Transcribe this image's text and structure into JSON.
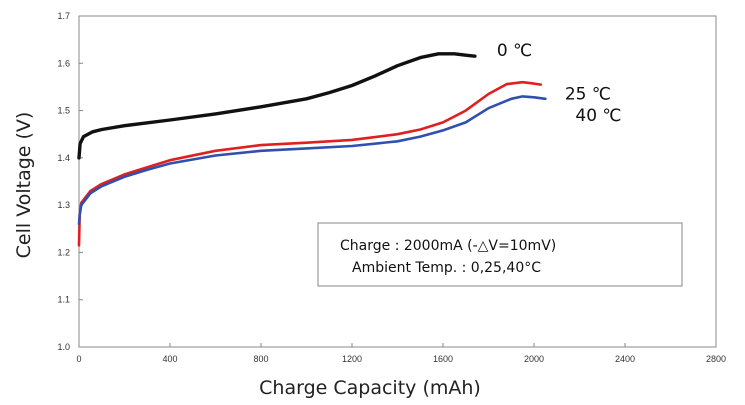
{
  "chart_data": {
    "type": "line",
    "title": "",
    "xlabel": "Charge Capacity (mAh)",
    "ylabel": "Cell Voltage (V)",
    "xlim": [
      0,
      2800
    ],
    "ylim": [
      1.0,
      1.7
    ],
    "xticks": [
      "0",
      "400",
      "800",
      "1200",
      "1600",
      "2000",
      "2400",
      "2800"
    ],
    "yticks": [
      "1.0",
      "1.1",
      "1.2",
      "1.3",
      "1.4",
      "1.5",
      "1.6",
      "1.7"
    ],
    "grid": false,
    "legend": "inline labels at line ends",
    "series": [
      {
        "name": "0 ℃",
        "color": "#111111",
        "points": [
          [
            0,
            1.4
          ],
          [
            5,
            1.43
          ],
          [
            20,
            1.445
          ],
          [
            60,
            1.455
          ],
          [
            100,
            1.46
          ],
          [
            200,
            1.468
          ],
          [
            400,
            1.48
          ],
          [
            600,
            1.493
          ],
          [
            800,
            1.508
          ],
          [
            1000,
            1.525
          ],
          [
            1100,
            1.538
          ],
          [
            1200,
            1.553
          ],
          [
            1300,
            1.573
          ],
          [
            1400,
            1.595
          ],
          [
            1500,
            1.612
          ],
          [
            1580,
            1.62
          ],
          [
            1650,
            1.62
          ],
          [
            1700,
            1.617
          ],
          [
            1740,
            1.615
          ]
        ]
      },
      {
        "name": "25 ℃",
        "color": "#e02020",
        "points": [
          [
            0,
            1.215
          ],
          [
            3,
            1.28
          ],
          [
            10,
            1.305
          ],
          [
            50,
            1.33
          ],
          [
            100,
            1.345
          ],
          [
            200,
            1.365
          ],
          [
            300,
            1.38
          ],
          [
            400,
            1.395
          ],
          [
            600,
            1.415
          ],
          [
            800,
            1.427
          ],
          [
            1000,
            1.432
          ],
          [
            1200,
            1.438
          ],
          [
            1400,
            1.45
          ],
          [
            1500,
            1.46
          ],
          [
            1600,
            1.475
          ],
          [
            1700,
            1.5
          ],
          [
            1800,
            1.535
          ],
          [
            1880,
            1.556
          ],
          [
            1950,
            1.56
          ],
          [
            2000,
            1.557
          ],
          [
            2030,
            1.555
          ]
        ]
      },
      {
        "name": "40 ℃",
        "color": "#3050b0",
        "points": [
          [
            0,
            1.26
          ],
          [
            3,
            1.28
          ],
          [
            10,
            1.3
          ],
          [
            50,
            1.325
          ],
          [
            100,
            1.34
          ],
          [
            200,
            1.36
          ],
          [
            300,
            1.375
          ],
          [
            400,
            1.388
          ],
          [
            600,
            1.405
          ],
          [
            800,
            1.415
          ],
          [
            1000,
            1.42
          ],
          [
            1200,
            1.425
          ],
          [
            1400,
            1.435
          ],
          [
            1500,
            1.445
          ],
          [
            1600,
            1.458
          ],
          [
            1700,
            1.475
          ],
          [
            1800,
            1.505
          ],
          [
            1900,
            1.525
          ],
          [
            1950,
            1.53
          ],
          [
            2000,
            1.528
          ],
          [
            2050,
            1.525
          ]
        ]
      }
    ],
    "annotation": {
      "line1": "Charge : 2000mA (-△V=10mV)",
      "line2": "Ambient Temp. : 0,25,40°C"
    }
  }
}
